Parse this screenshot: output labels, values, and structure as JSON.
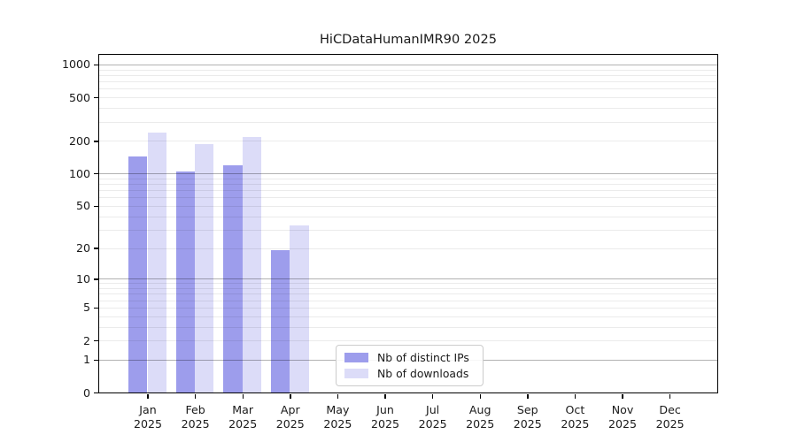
{
  "chart_data": {
    "type": "bar",
    "title": "HiCDataHumanIMR90 2025",
    "categories": [
      "Jan",
      "Feb",
      "Mar",
      "Apr",
      "May",
      "Jun",
      "Jul",
      "Aug",
      "Sep",
      "Oct",
      "Nov",
      "Dec"
    ],
    "x_year_label": "2025",
    "series": [
      {
        "name": "Nb of distinct IPs",
        "color": "#9d9dec",
        "values": [
          143,
          105,
          118,
          19,
          null,
          null,
          null,
          null,
          null,
          null,
          null,
          null
        ]
      },
      {
        "name": "Nb of downloads",
        "color": "#dcdcf8",
        "values": [
          237,
          185,
          218,
          33,
          null,
          null,
          null,
          null,
          null,
          null,
          null,
          null
        ]
      }
    ],
    "y_scale": "log10(1+x)",
    "y_ticks": [
      0,
      1,
      2,
      5,
      10,
      20,
      50,
      100,
      200,
      500,
      1000
    ],
    "ylim": [
      0,
      1300
    ],
    "xlabel": "",
    "ylabel": "",
    "grid": "horizontal",
    "grid_minor_color": "#ebebeb",
    "grid_major_color": "#b3b3b3",
    "axis_color": "#000000",
    "legend_position": "inside-bottom-center"
  }
}
